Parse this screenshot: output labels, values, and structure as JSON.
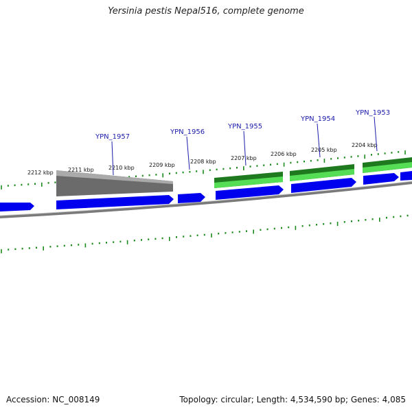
{
  "title": "Yersinia pestis Nepal516, complete genome",
  "footer": {
    "accession": "Accession: NC_008149",
    "summary": "Topology: circular; Length: 4,534,590 bp; Genes: 4,085"
  },
  "colors": {
    "forward_gene": "#0000ee",
    "reverse_gene_dark": "#1f7a1f",
    "reverse_gene_light": "#55dd55",
    "pseudo_gene": "#6b6b6b",
    "tick": "#1a8a1a",
    "backbone": "#7a7a7a",
    "locus_label": "#1a1aaa"
  },
  "ruler": {
    "ticks": [
      {
        "label": "2212 kbp"
      },
      {
        "label": "2211 kbp"
      },
      {
        "label": "2210 kbp"
      },
      {
        "label": "2209 kbp"
      },
      {
        "label": "2208 kbp"
      },
      {
        "label": "2207 kbp"
      },
      {
        "label": "2206 kbp"
      },
      {
        "label": "2205 kbp"
      },
      {
        "label": "2204 kbp"
      }
    ]
  },
  "loci": [
    {
      "label": "YPN_1957"
    },
    {
      "label": "YPN_1956"
    },
    {
      "label": "YPN_1955"
    },
    {
      "label": "YPN_1954"
    },
    {
      "label": "YPN_1953"
    }
  ]
}
